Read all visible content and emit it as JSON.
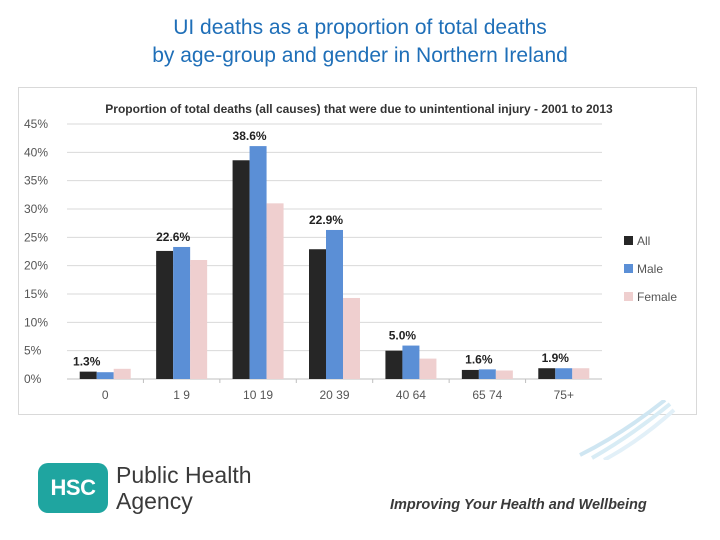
{
  "slide": {
    "title_line1": "UI deaths as a proportion of total deaths",
    "title_line2": "by age-group and gender in Northern Ireland"
  },
  "chart_data": {
    "type": "bar",
    "title": "Proportion of total deaths (all causes) that were due to unintentional injury - 2001 to 2013",
    "categories": [
      "0",
      "1 9",
      "10 19",
      "20 39",
      "40 64",
      "65 74",
      "75+"
    ],
    "series": [
      {
        "name": "All",
        "color": "#262626",
        "values": [
          1.3,
          22.6,
          38.6,
          22.9,
          5.0,
          1.6,
          1.9
        ]
      },
      {
        "name": "Male",
        "color": "#5b8fd6",
        "values": [
          1.2,
          23.3,
          41.1,
          26.3,
          5.9,
          1.7,
          1.9
        ]
      },
      {
        "name": "Female",
        "color": "#efcfcf",
        "values": [
          1.8,
          21.0,
          31.0,
          14.3,
          3.6,
          1.5,
          1.9
        ]
      }
    ],
    "data_labels": [
      "1.3%",
      "22.6%",
      "38.6%",
      "22.9%",
      "5.0%",
      "1.6%",
      "1.9%"
    ],
    "yticks": [
      "0%",
      "5%",
      "10%",
      "15%",
      "20%",
      "25%",
      "30%",
      "35%",
      "40%",
      "45%"
    ],
    "ylim": [
      0,
      45
    ],
    "grid": true,
    "legend_position": "right"
  },
  "footer": {
    "logo_text": "HSC",
    "agency_line1": "Public Health",
    "agency_line2": "Agency",
    "tagline": "Improving Your Health and Wellbeing",
    "brand_color": "#1fa5a0"
  }
}
